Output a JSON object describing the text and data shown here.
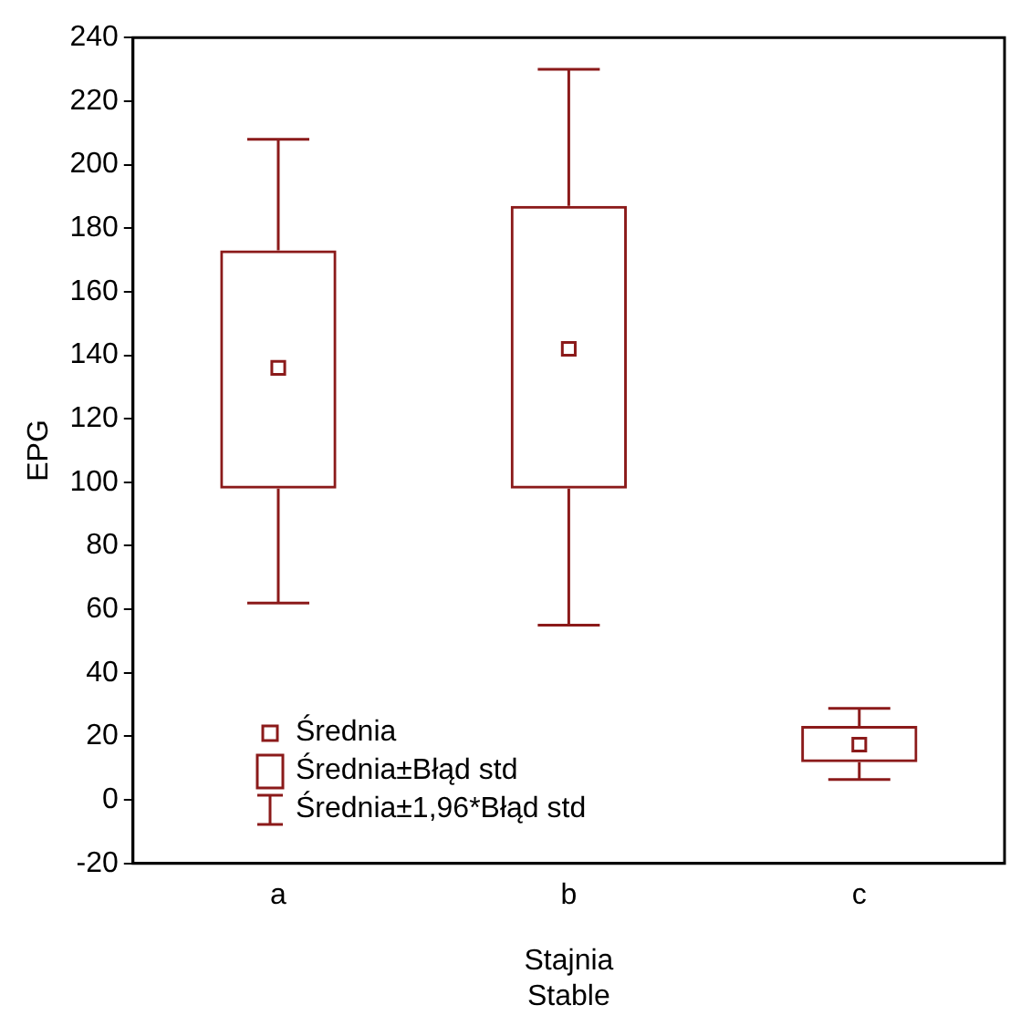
{
  "chart_data": {
    "type": "box",
    "xlabel": "Stajnia\nStable",
    "ylabel": "EPG",
    "categories": [
      "a",
      "b",
      "c"
    ],
    "color": "#8b1a1a",
    "boxes": [
      {
        "low": 62,
        "q1": 98,
        "median": 136,
        "q3": 173,
        "high": 208
      },
      {
        "low": 55,
        "q1": 98,
        "median": 142,
        "q3": 187,
        "high": 230
      },
      {
        "low": 6.4,
        "q1": 11.9,
        "median": 17.4,
        "q3": 23.3,
        "high": 28.8
      }
    ],
    "ylim": [
      -20,
      240
    ],
    "yticks": [
      -20,
      0,
      20,
      40,
      60,
      80,
      100,
      120,
      140,
      160,
      180,
      200,
      220,
      240
    ],
    "annotations": [
      "Średnia",
      "Średnia±Błąd std",
      "Średnia±1,96*Błąd std"
    ],
    "grid": false,
    "marker": "square"
  }
}
